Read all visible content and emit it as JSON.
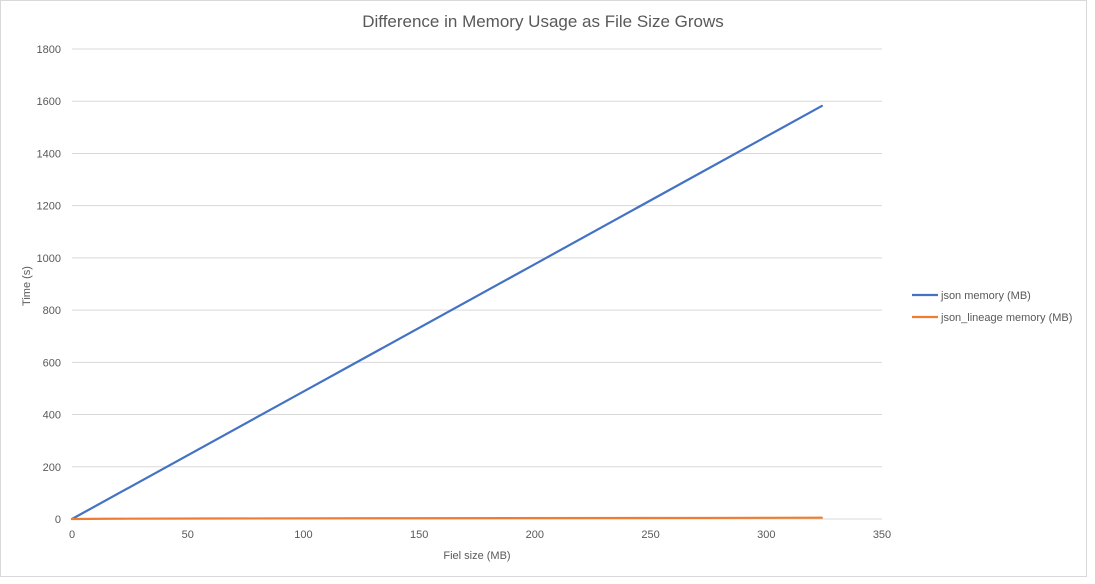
{
  "chart_data": {
    "type": "line",
    "title": "Difference in Memory Usage as File Size Grows",
    "xlabel": "Fiel size (MB)",
    "ylabel": "Time (s)",
    "xlim": [
      0,
      350
    ],
    "ylim": [
      0,
      1800
    ],
    "x_ticks": [
      0,
      50,
      100,
      150,
      200,
      250,
      300,
      350
    ],
    "y_ticks": [
      0,
      200,
      400,
      600,
      800,
      1000,
      1200,
      1400,
      1600,
      1800
    ],
    "grid": true,
    "legend_position": "right",
    "series": [
      {
        "name": "json memory (MB)",
        "color": "#4472c4",
        "points": [
          [
            0,
            0
          ],
          [
            100,
            488
          ],
          [
            200,
            976
          ],
          [
            324,
            1582
          ]
        ]
      },
      {
        "name": "json_lineage memory (MB)",
        "color": "#ed7d31",
        "points": [
          [
            0,
            0
          ],
          [
            15,
            1
          ],
          [
            60,
            2
          ],
          [
            150,
            3
          ],
          [
            270,
            4
          ],
          [
            324,
            5
          ]
        ]
      }
    ]
  }
}
